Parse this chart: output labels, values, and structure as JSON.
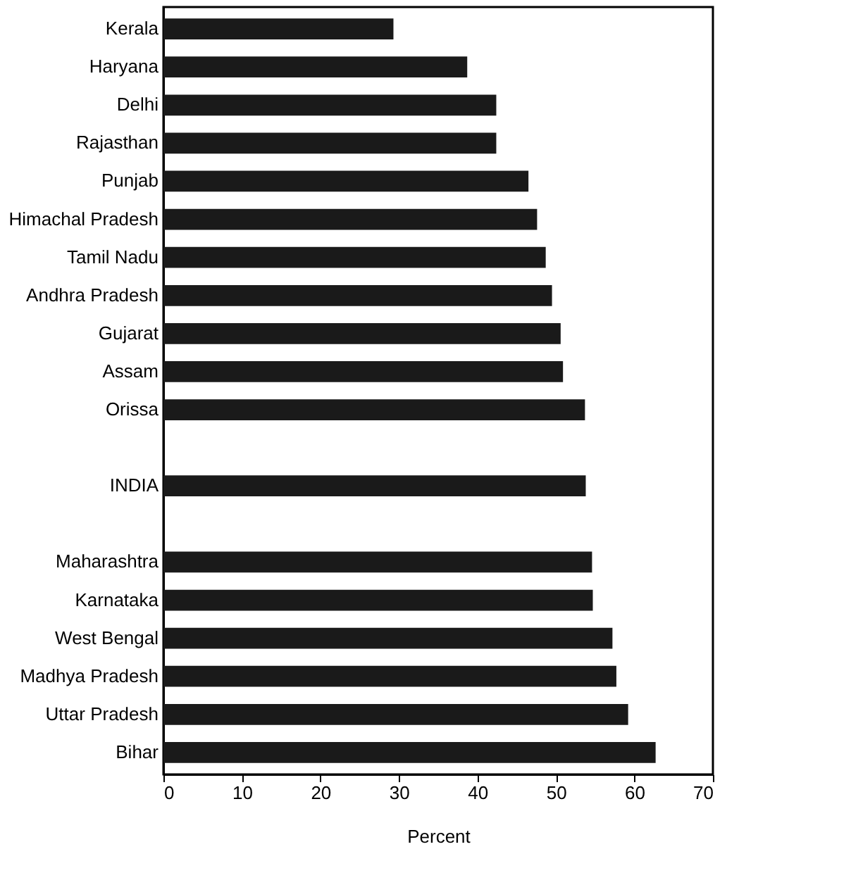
{
  "chart_data": {
    "type": "bar",
    "orientation": "horizontal",
    "xlabel": "Percent",
    "categories": [
      "Kerala",
      "Haryana",
      "Delhi",
      "Rajasthan",
      "Punjab",
      "Himachal Pradesh",
      "Tamil Nadu",
      "Andhra Pradesh",
      "Gujarat",
      "Assam",
      "Orissa",
      null,
      "INDIA",
      null,
      "Maharashtra",
      "Karnataka",
      "West Bengal",
      "Madhya Pradesh",
      "Uttar Pradesh",
      "Bihar"
    ],
    "values": [
      29.3,
      38.7,
      42.4,
      42.4,
      46.5,
      47.6,
      48.7,
      49.5,
      50.6,
      50.9,
      53.7,
      null,
      53.8,
      null,
      54.6,
      54.7,
      57.2,
      57.7,
      59.2,
      62.7
    ],
    "color": "#1a1a1a",
    "xlim": [
      0,
      70
    ],
    "xticks": [
      0,
      10,
      20,
      30,
      40,
      50,
      60,
      70
    ],
    "grid": false
  }
}
